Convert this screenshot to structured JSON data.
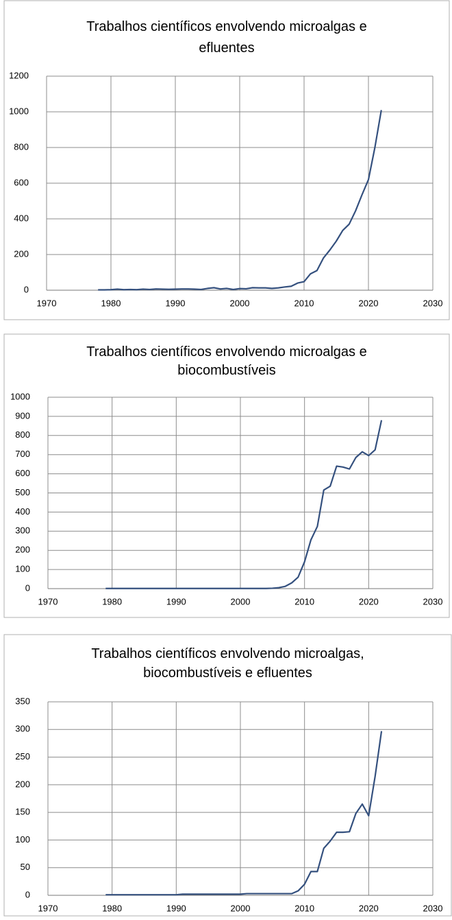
{
  "chart_data": [
    {
      "type": "line",
      "title": [
        "Trabalhos científicos envolvendo microalgas e",
        "efluentes"
      ],
      "x": [
        1978,
        1979,
        1980,
        1981,
        1982,
        1983,
        1984,
        1985,
        1986,
        1987,
        1988,
        1989,
        1990,
        1991,
        1992,
        1993,
        1994,
        1995,
        1996,
        1997,
        1998,
        1999,
        2000,
        2001,
        2002,
        2003,
        2004,
        2005,
        2006,
        2007,
        2008,
        2009,
        2010,
        2011,
        2012,
        2013,
        2014,
        2015,
        2016,
        2017,
        2018,
        2019,
        2020,
        2021,
        2022
      ],
      "series": [
        {
          "color": "#34507e",
          "values": [
            2,
            2,
            3,
            6,
            3,
            4,
            3,
            6,
            4,
            7,
            6,
            5,
            6,
            7,
            7,
            6,
            4,
            10,
            14,
            7,
            10,
            4,
            9,
            8,
            14,
            13,
            13,
            10,
            13,
            18,
            22,
            40,
            48,
            92,
            110,
            180,
            225,
            275,
            335,
            370,
            445,
            535,
            620,
            800,
            1010
          ]
        }
      ],
      "xlim": [
        1970,
        2030
      ],
      "xticks": [
        1970,
        1980,
        1990,
        2000,
        2010,
        2020,
        2030
      ],
      "ylim": [
        0,
        1200
      ],
      "yticks": [
        0,
        200,
        400,
        600,
        800,
        1000,
        1200
      ],
      "grid": true
    },
    {
      "type": "line",
      "title": [
        "Trabalhos científicos envolvendo microalgas e",
        "biocombustíveis"
      ],
      "x": [
        1979,
        1980,
        1981,
        1982,
        1983,
        1984,
        1985,
        1986,
        1987,
        1988,
        1989,
        1990,
        1991,
        1992,
        1993,
        1994,
        1995,
        1996,
        1997,
        1998,
        1999,
        2000,
        2001,
        2002,
        2003,
        2004,
        2005,
        2006,
        2007,
        2008,
        2009,
        2010,
        2011,
        2012,
        2013,
        2014,
        2015,
        2016,
        2017,
        2018,
        2019,
        2020,
        2021,
        2022
      ],
      "series": [
        {
          "color": "#34507e",
          "values": [
            1,
            1,
            1,
            1,
            1,
            1,
            1,
            1,
            1,
            1,
            1,
            1,
            1,
            1,
            1,
            1,
            1,
            1,
            1,
            1,
            1,
            1,
            1,
            1,
            1,
            1,
            2,
            5,
            12,
            30,
            60,
            140,
            255,
            325,
            515,
            535,
            640,
            635,
            625,
            685,
            715,
            695,
            725,
            880
          ]
        }
      ],
      "xlim": [
        1970,
        2030
      ],
      "xticks": [
        1970,
        1980,
        1990,
        2000,
        2010,
        2020,
        2030
      ],
      "ylim": [
        0,
        1000
      ],
      "yticks": [
        0,
        100,
        200,
        300,
        400,
        500,
        600,
        700,
        800,
        900,
        1000
      ],
      "grid": true
    },
    {
      "type": "line",
      "title": [
        "Trabalhos científicos envolvendo microalgas,",
        "biocombustíveis e efluentes"
      ],
      "x": [
        1979,
        1980,
        1981,
        1982,
        1983,
        1984,
        1985,
        1986,
        1987,
        1988,
        1989,
        1990,
        1991,
        1992,
        1993,
        1994,
        1995,
        1996,
        1997,
        1998,
        1999,
        2000,
        2001,
        2002,
        2003,
        2004,
        2005,
        2006,
        2007,
        2008,
        2009,
        2010,
        2011,
        2012,
        2013,
        2014,
        2015,
        2016,
        2017,
        2018,
        2019,
        2020,
        2021,
        2022
      ],
      "series": [
        {
          "color": "#34507e",
          "values": [
            1,
            1,
            1,
            1,
            1,
            1,
            1,
            1,
            1,
            1,
            1,
            1,
            2,
            2,
            2,
            2,
            2,
            2,
            2,
            2,
            2,
            2,
            3,
            3,
            3,
            3,
            3,
            3,
            3,
            3,
            8,
            20,
            43,
            43,
            85,
            98,
            114,
            114,
            115,
            148,
            165,
            144,
            215,
            297
          ]
        }
      ],
      "xlim": [
        1970,
        2030
      ],
      "xticks": [
        1970,
        1980,
        1990,
        2000,
        2010,
        2020,
        2030
      ],
      "ylim": [
        0,
        350
      ],
      "yticks": [
        0,
        50,
        100,
        150,
        200,
        250,
        300,
        350
      ],
      "grid": true
    }
  ]
}
